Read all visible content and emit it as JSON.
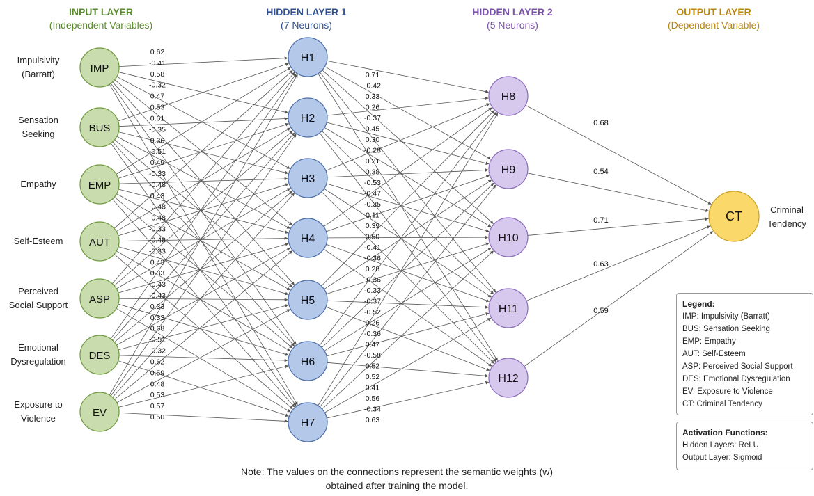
{
  "layers": [
    {
      "key": "input",
      "title": "INPUT LAYER",
      "subtitle": "(Independent Variables)",
      "color": "#5a8a2e"
    },
    {
      "key": "h1",
      "title": "HIDDEN LAYER 1",
      "subtitle": "(7 Neurons)",
      "color": "#2f4f8f"
    },
    {
      "key": "h2",
      "title": "HIDDEN LAYER 2",
      "subtitle": "(5 Neurons)",
      "color": "#7a52a8"
    },
    {
      "key": "output",
      "title": "OUTPUT LAYER",
      "subtitle": "(Dependent Variable)",
      "color": "#b8860b"
    }
  ],
  "inputs": [
    {
      "id": "IMP",
      "label": [
        "Impulsivity",
        "(Barratt)"
      ]
    },
    {
      "id": "BUS",
      "label": [
        "Sensation",
        "Seeking"
      ]
    },
    {
      "id": "EMP",
      "label": [
        "Empathy"
      ]
    },
    {
      "id": "AUT",
      "label": [
        "Self-Esteem"
      ]
    },
    {
      "id": "ASP",
      "label": [
        "Perceived",
        "Social Support"
      ]
    },
    {
      "id": "DES",
      "label": [
        "Emotional",
        "Dysregulation"
      ]
    },
    {
      "id": "EV",
      "label": [
        "Exposure to",
        "Violence"
      ]
    }
  ],
  "hidden1": [
    "H1",
    "H2",
    "H3",
    "H4",
    "H5",
    "H6",
    "H7"
  ],
  "hidden2": [
    "H8",
    "H9",
    "H10",
    "H11",
    "H12"
  ],
  "output": {
    "id": "CT",
    "label": [
      "Criminal",
      "Tendency"
    ]
  },
  "weights_in_h1": [
    "0.62",
    "-0.41",
    "0.58",
    "-0.32",
    "0.47",
    "0.53",
    "0.61",
    "-0.35",
    "0.36",
    "-0.51",
    "0.49",
    "-0.33",
    "-0.48",
    "0.43",
    "-0.48",
    "-0.48",
    "-0.33",
    "-0.48",
    "-0.33",
    "0.43",
    "0.33",
    "-0.43",
    "-0.43",
    "0.33",
    "0.33",
    "0.68",
    "-0.51",
    "-0.32",
    "0.62",
    "0.59",
    "0.48",
    "0.53",
    "0.57",
    "0.50"
  ],
  "weights_h1_h2": [
    "0.71",
    "-0.42",
    "0.33",
    "0.26",
    "-0.37",
    "0.45",
    "0.30",
    "-0.28",
    "0.21",
    "0.38",
    "-0.53",
    "-0.47",
    "-0.35",
    "0.11",
    "0.39",
    "0.50",
    "-0.41",
    "-0.36",
    "0.28",
    "-0.36",
    "-0.33",
    "-0.37",
    "-0.52",
    "0.26",
    "-0.36",
    "0.47",
    "-0.58",
    "0.52",
    "0.52",
    "0.41",
    "0.56",
    "-0.34",
    "0.63"
  ],
  "weights_h2_out": [
    "0.68",
    "0.54",
    "0.71",
    "0.63",
    "0.59"
  ],
  "legend": {
    "title": "Legend:",
    "items": [
      "IMP: Impulsivity (Barratt)",
      "BUS: Sensation Seeking",
      "EMP: Empathy",
      "AUT: Self-Esteem",
      "ASP: Perceived Social Support",
      "DES: Emotional Dysregulation",
      "EV: Exposure to Violence",
      "CT: Criminal Tendency"
    ]
  },
  "activation": {
    "title": "Activation Functions:",
    "items": [
      "Hidden Layers: ReLU",
      "Output Layer: Sigmoid"
    ]
  },
  "note": [
    "Note: The values on the connections represent the semantic weights (w)",
    "obtained after training the model."
  ],
  "colors": {
    "input_fill": "#c9dcae",
    "input_stroke": "#6c9a3e",
    "h1_fill": "#b4c8ea",
    "h1_stroke": "#4d6fa8",
    "h2_fill": "#d7c8ee",
    "h2_stroke": "#8a6bb8",
    "out_fill": "#fbd86a",
    "out_stroke": "#c9a227",
    "edge": "#555555"
  }
}
